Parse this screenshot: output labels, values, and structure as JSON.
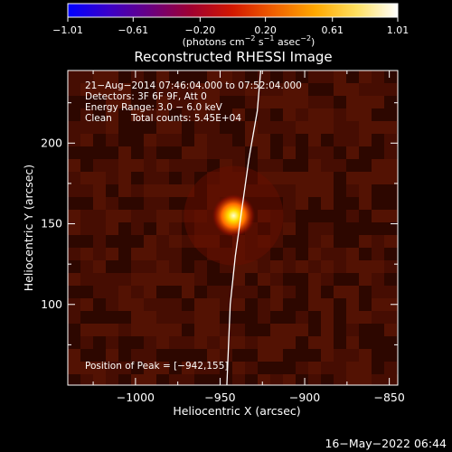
{
  "chart_data": {
    "type": "heatmap",
    "title": "Reconstructed RHESSI Image",
    "xlabel": "Heliocentric X (arcsec)",
    "ylabel": "Heliocentric Y (arcsec)",
    "xlim": [
      -1040,
      -845
    ],
    "ylim": [
      50,
      245
    ],
    "xticks": [
      -1000,
      -950,
      -900,
      -850
    ],
    "xtick_labels": [
      "−1000",
      "−950",
      "−900",
      "−850"
    ],
    "yticks": [
      100,
      150,
      200
    ],
    "ytick_labels": [
      "100",
      "150",
      "200"
    ],
    "colorbar": {
      "range": [
        -1.01,
        1.01
      ],
      "ticks": [
        -1.01,
        -0.61,
        -0.2,
        0.2,
        0.61,
        1.01
      ],
      "tick_labels": [
        "−1.01",
        "−0.61",
        "−0.20",
        "0.20",
        "0.61",
        "1.01"
      ],
      "unit_main": "(photons cm",
      "unit_sup1": "−2",
      "unit_mid": " s",
      "unit_sup2": "−1",
      "unit_mid2": " asec",
      "unit_sup3": "−2",
      "unit_end": ")",
      "colormap": [
        "#0000ff",
        "#3b00c8",
        "#6a0080",
        "#a00030",
        "#d21800",
        "#f06000",
        "#ffa800",
        "#ffe060",
        "#ffffff"
      ]
    },
    "peak": {
      "x": -942,
      "y": 155
    },
    "limb_curve": [
      [
        -946,
        50
      ],
      [
        -944,
        100
      ],
      [
        -941,
        130
      ],
      [
        -937,
        160
      ],
      [
        -933,
        190
      ],
      [
        -928,
        220
      ],
      [
        -926,
        245
      ]
    ],
    "annotations": {
      "time": "21−Aug−2014 07:46:04.000 to 07:52:04.000",
      "detectors": "Detectors: 3F 6F 9F, Att 0",
      "energy": "Energy Range: 3.0 − 6.0 keV",
      "clean": "Clean",
      "counts": "Total counts: 5.45E+04",
      "peak_label": "Position of Peak = [−942,155]"
    }
  },
  "footer": {
    "date": "16−May−2022 06:44"
  }
}
